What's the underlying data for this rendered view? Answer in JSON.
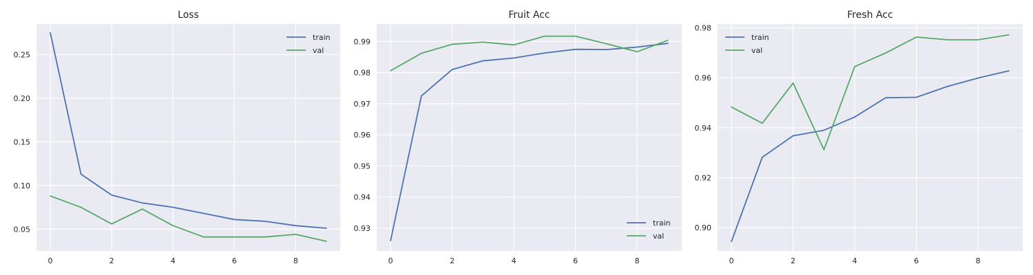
{
  "chart_data": [
    {
      "type": "line",
      "title": "Loss",
      "xlabel": "",
      "ylabel": "",
      "x": [
        0,
        1,
        2,
        3,
        4,
        5,
        6,
        7,
        8,
        9
      ],
      "xlim": [
        -0.45,
        9.45
      ],
      "ylim": [
        0.025,
        0.285
      ],
      "xticks": [
        0,
        2,
        4,
        6,
        8
      ],
      "yticks": [
        0.05,
        0.1,
        0.15,
        0.2,
        0.25
      ],
      "ytick_labels": [
        "0.05",
        "0.10",
        "0.15",
        "0.20",
        "0.25"
      ],
      "grid": true,
      "legend_position": "top-right",
      "series": [
        {
          "name": "train",
          "color": "#4c72b0",
          "values": [
            0.275,
            0.113,
            0.089,
            0.08,
            0.075,
            0.068,
            0.061,
            0.059,
            0.054,
            0.051
          ]
        },
        {
          "name": "val",
          "color": "#55a868",
          "values": [
            0.088,
            0.075,
            0.056,
            0.073,
            0.054,
            0.041,
            0.041,
            0.041,
            0.044,
            0.036
          ]
        }
      ]
    },
    {
      "type": "line",
      "title": "Fruit Acc",
      "xlabel": "",
      "ylabel": "",
      "x": [
        0,
        1,
        2,
        3,
        4,
        5,
        6,
        7,
        8,
        9
      ],
      "xlim": [
        -0.45,
        9.45
      ],
      "ylim": [
        0.9227,
        0.9956
      ],
      "xticks": [
        0,
        2,
        4,
        6,
        8
      ],
      "yticks": [
        0.93,
        0.94,
        0.95,
        0.96,
        0.97,
        0.98,
        0.99
      ],
      "ytick_labels": [
        "0.93",
        "0.94",
        "0.95",
        "0.96",
        "0.97",
        "0.98",
        "0.99"
      ],
      "grid": true,
      "legend_position": "bottom-right",
      "series": [
        {
          "name": "train",
          "color": "#4c72b0",
          "values": [
            0.926,
            0.9725,
            0.981,
            0.9838,
            0.9847,
            0.9863,
            0.9875,
            0.9874,
            0.9882,
            0.9894
          ]
        },
        {
          "name": "val",
          "color": "#55a868",
          "values": [
            0.9806,
            0.9862,
            0.9891,
            0.9898,
            0.9889,
            0.9917,
            0.9917,
            0.9893,
            0.9867,
            0.9904
          ]
        }
      ]
    },
    {
      "type": "line",
      "title": "Fresh Acc",
      "xlabel": "",
      "ylabel": "",
      "x": [
        0,
        1,
        2,
        3,
        4,
        5,
        6,
        7,
        8,
        9
      ],
      "xlim": [
        -0.45,
        9.45
      ],
      "ylim": [
        0.8907,
        0.9815
      ],
      "xticks": [
        0,
        2,
        4,
        6,
        8
      ],
      "yticks": [
        0.9,
        0.92,
        0.94,
        0.96,
        0.98
      ],
      "ytick_labels": [
        "0.90",
        "0.92",
        "0.94",
        "0.96",
        "0.98"
      ],
      "grid": true,
      "legend_position": "top-left",
      "series": [
        {
          "name": "train",
          "color": "#4c72b0",
          "values": [
            0.8945,
            0.9282,
            0.9368,
            0.939,
            0.9443,
            0.952,
            0.9522,
            0.9565,
            0.9599,
            0.9628
          ]
        },
        {
          "name": "val",
          "color": "#55a868",
          "values": [
            0.9483,
            0.9418,
            0.9579,
            0.9312,
            0.9645,
            0.9699,
            0.9763,
            0.9752,
            0.9752,
            0.9772
          ]
        }
      ]
    }
  ]
}
